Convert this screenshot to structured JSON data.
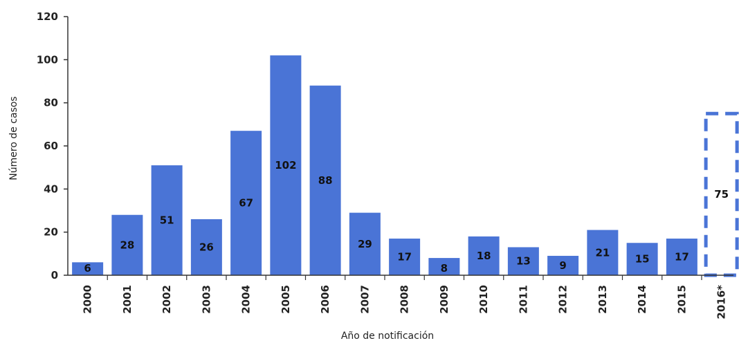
{
  "chart_data": {
    "type": "bar",
    "categories": [
      "2000",
      "2001",
      "2002",
      "2003",
      "2004",
      "2005",
      "2006",
      "2007",
      "2008",
      "2009",
      "2010",
      "2011",
      "2012",
      "2013",
      "2014",
      "2015",
      "2016*"
    ],
    "values": [
      6,
      28,
      51,
      26,
      67,
      102,
      88,
      29,
      17,
      8,
      18,
      13,
      9,
      21,
      15,
      17,
      75
    ],
    "data_labels": [
      "6",
      "28",
      "51",
      "26",
      "67",
      "102",
      "88",
      "29",
      "17",
      "8",
      "18",
      "13",
      "9",
      "21",
      "15",
      "17",
      "75"
    ],
    "bar_styles": [
      "solid",
      "solid",
      "solid",
      "solid",
      "solid",
      "solid",
      "solid",
      "solid",
      "solid",
      "solid",
      "solid",
      "solid",
      "solid",
      "solid",
      "solid",
      "solid",
      "dashed"
    ],
    "xlabel": "Año de notificación",
    "ylabel": "Número de casos",
    "ylim": [
      0,
      120
    ],
    "yticks": [
      "0",
      "20",
      "40",
      "60",
      "80",
      "100",
      "120"
    ],
    "grid": false,
    "bar_color": "#4a74d6"
  }
}
